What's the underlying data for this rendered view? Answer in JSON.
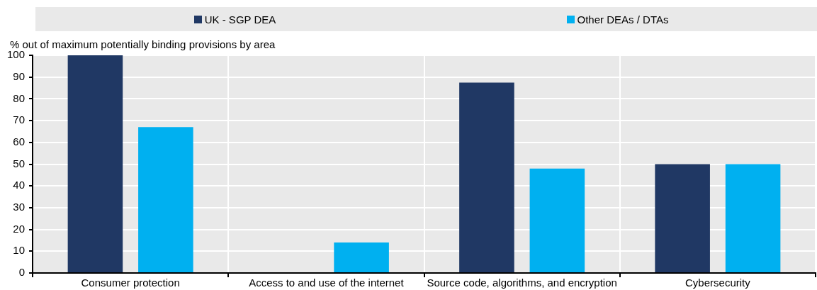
{
  "chart_data": {
    "type": "bar",
    "ylabel": "% out of maximum potentially binding provisions by area",
    "categories": [
      "Consumer protection",
      "Access to and use of the internet",
      "Source code, algorithms, and encryption",
      "Cybersecurity"
    ],
    "series": [
      {
        "name": "UK - SGP DEA",
        "color": "#203864",
        "values": [
          100,
          0,
          87.5,
          50
        ]
      },
      {
        "name": "Other DEAs / DTAs",
        "color": "#00b0f0",
        "values": [
          67,
          14,
          48,
          50
        ]
      }
    ],
    "ylim": [
      0,
      100
    ],
    "yticks": [
      0,
      10,
      20,
      30,
      40,
      50,
      60,
      70,
      80,
      90,
      100
    ],
    "grid": true,
    "legend": "top"
  }
}
